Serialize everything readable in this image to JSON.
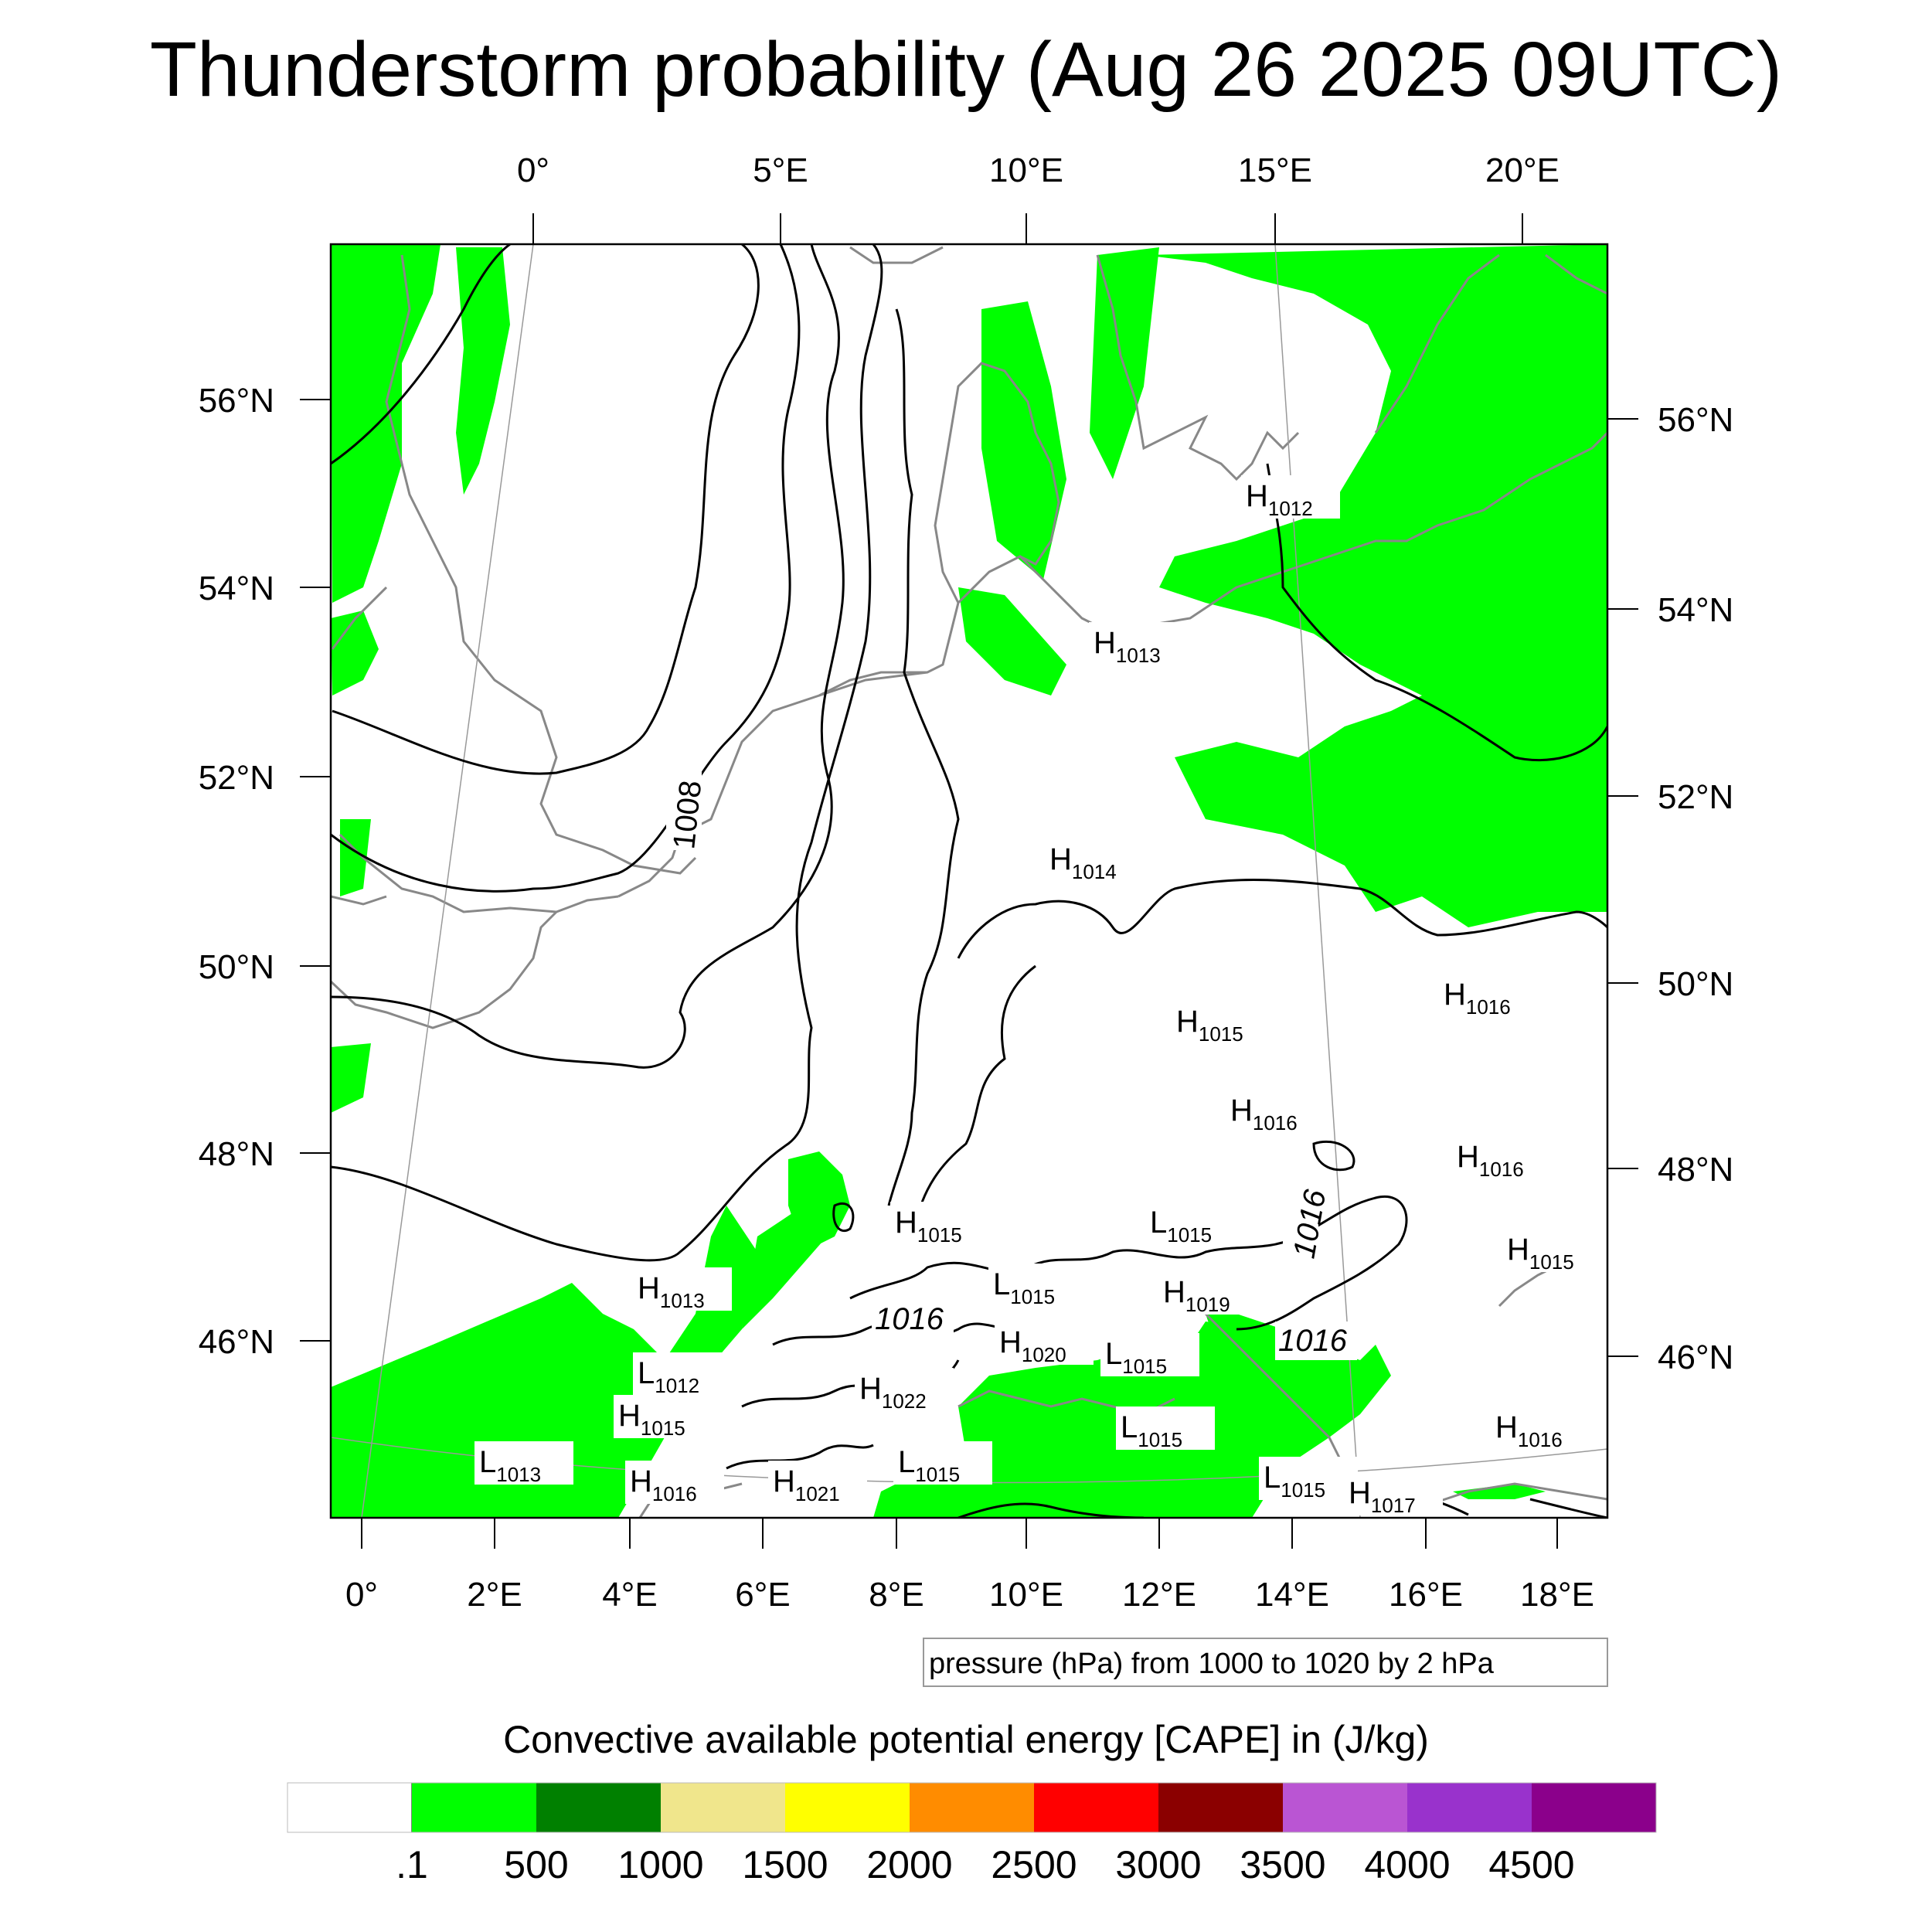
{
  "title": "Thunderstorm probability (Aug 26 2025 09UTC)",
  "map": {
    "top_lon_labels": [
      "0°",
      "5°E",
      "10°E",
      "15°E",
      "20°E"
    ],
    "bottom_lon_labels": [
      "0°",
      "2°E",
      "4°E",
      "6°E",
      "8°E",
      "10°E",
      "12°E",
      "14°E",
      "16°E",
      "18°E"
    ],
    "left_lat_labels": [
      "56°N",
      "54°N",
      "52°N",
      "50°N",
      "48°N",
      "46°N"
    ],
    "right_lat_labels": [
      "56°N",
      "54°N",
      "52°N",
      "50°N",
      "48°N",
      "46°N"
    ],
    "contour_labels": [
      "1008",
      "1016",
      "1016",
      "1016"
    ],
    "pressure_centers": [
      {
        "type": "H",
        "value": "1012"
      },
      {
        "type": "H",
        "value": "1013"
      },
      {
        "type": "H",
        "value": "1014"
      },
      {
        "type": "H",
        "value": "1015"
      },
      {
        "type": "H",
        "value": "1016"
      },
      {
        "type": "H",
        "value": "1016"
      },
      {
        "type": "H",
        "value": "1016"
      },
      {
        "type": "H",
        "value": "1015"
      },
      {
        "type": "L",
        "value": "1015"
      },
      {
        "type": "H",
        "value": "1019"
      },
      {
        "type": "H",
        "value": "1015"
      },
      {
        "type": "H",
        "value": "1013"
      },
      {
        "type": "L",
        "value": "1012"
      },
      {
        "type": "H",
        "value": "1020"
      },
      {
        "type": "L",
        "value": "1015"
      },
      {
        "type": "H",
        "value": "1022"
      },
      {
        "type": "H",
        "value": "1015"
      },
      {
        "type": "L",
        "value": "1015"
      },
      {
        "type": "L",
        "value": "1015"
      },
      {
        "type": "H",
        "value": "1021"
      },
      {
        "type": "H",
        "value": "1016"
      },
      {
        "type": "L",
        "value": "1013"
      },
      {
        "type": "L",
        "value": "1015"
      },
      {
        "type": "H",
        "value": "1017"
      },
      {
        "type": "H",
        "value": "1016"
      },
      {
        "type": "L",
        "value": "1015"
      }
    ],
    "pressure_note": "pressure (hPa) from 1000 to 1020 by 2 hPa"
  },
  "legend": {
    "title": "Convective available potential energy [CAPE] in (J/kg)",
    "colors": [
      "#ffffff",
      "#00ff00",
      "#008000",
      "#f0e68c",
      "#ffff00",
      "#ff8c00",
      "#ff0000",
      "#8b0000",
      "#ba55d3",
      "#9932cc",
      "#8b008b"
    ],
    "labels": [
      ".1",
      "500",
      "1000",
      "1500",
      "2000",
      "2500",
      "3000",
      "3500",
      "4000",
      "4500"
    ]
  }
}
